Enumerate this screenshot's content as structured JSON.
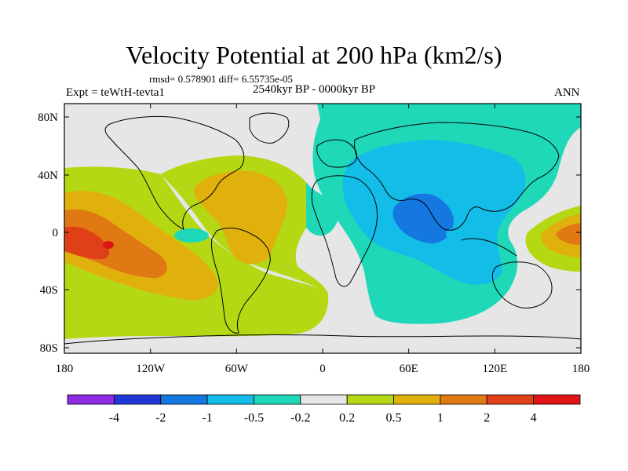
{
  "title": "Velocity Potential at 200 hPa (km2/s)",
  "stats_line": "rmsd= 0.578901  diff= 6.55735e-05",
  "experiment": "Expt = teWtH-tevta1",
  "period": "2540kyr BP - 0000kyr BP",
  "season": "ANN",
  "axes": {
    "lat_ticks": [
      "80N",
      "40N",
      "0",
      "40S",
      "80S"
    ],
    "lon_ticks": [
      "180",
      "120W",
      "60W",
      "0",
      "60E",
      "120E",
      "180"
    ]
  },
  "colorbar": {
    "labels": [
      "-4",
      "-2",
      "-1",
      "-0.5",
      "-0.2",
      "0.2",
      "0.5",
      "1",
      "2",
      "4"
    ],
    "colors": [
      "#8c2be2",
      "#2038d8",
      "#1478e0",
      "#14bce8",
      "#1ed8b8",
      "#e6e6e6",
      "#b4d814",
      "#e0b00c",
      "#e07814",
      "#e04018",
      "#e01414"
    ]
  }
}
